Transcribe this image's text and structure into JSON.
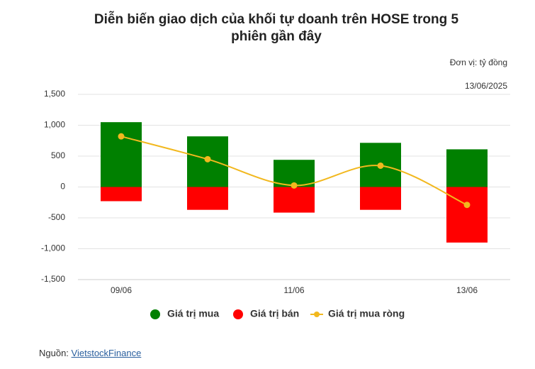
{
  "chart_data": {
    "type": "bar",
    "title": "Diễn biến giao dịch của khối tự doanh trên HOSE trong 5 phiên gần đây",
    "unit": "Đơn vị: tỷ đồng",
    "date": "13/06/2025",
    "source_label": "Nguồn:",
    "source_link": "VietstockFinance",
    "categories": [
      "09/06",
      null,
      "11/06",
      null,
      "13/06"
    ],
    "series": [
      {
        "name": "Giá trị mua",
        "type": "bar",
        "color": "#008000",
        "values": [
          1050,
          820,
          440,
          715,
          610
        ]
      },
      {
        "name": "Giá trị bán",
        "type": "bar",
        "color": "#ff0000",
        "values": [
          -230,
          -370,
          -415,
          -370,
          -900
        ]
      },
      {
        "name": "Giá trị mua ròng",
        "type": "line",
        "color": "#f2b81e",
        "values": [
          820,
          450,
          25,
          345,
          -290
        ]
      }
    ],
    "ylim": [
      -1500,
      1500
    ],
    "yticks": [
      {
        "value": -1500,
        "label": "-1,500"
      },
      {
        "value": -1000,
        "label": "-1,000"
      },
      -500,
      0,
      500,
      {
        "value": 1000,
        "label": "1,000"
      },
      {
        "value": 1500,
        "label": "1,500"
      }
    ],
    "grid": true
  }
}
